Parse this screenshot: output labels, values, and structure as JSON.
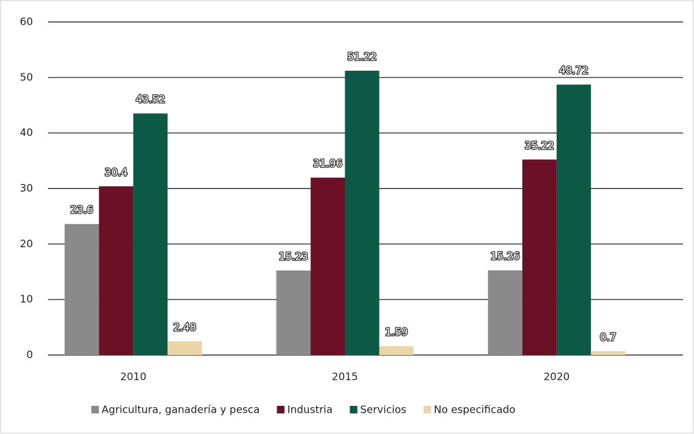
{
  "chart_data": {
    "type": "bar",
    "categories": [
      "2010",
      "2015",
      "2020"
    ],
    "series": [
      {
        "name": "Agricultura, ganadería y pesca",
        "color": "#8a8a8a",
        "values": [
          23.6,
          15.23,
          15.26
        ]
      },
      {
        "name": "Industria",
        "color": "#6b1027",
        "values": [
          30.4,
          31.96,
          35.22
        ]
      },
      {
        "name": "Servicios",
        "color": "#0c5a46",
        "values": [
          43.52,
          51.22,
          48.72
        ]
      },
      {
        "name": "No especificado",
        "color": "#ead4a8",
        "values": [
          2.48,
          1.59,
          0.7
        ]
      }
    ],
    "ylim": [
      0,
      60
    ],
    "yticks": [
      0,
      10,
      20,
      30,
      40,
      50,
      60
    ],
    "grid": true,
    "legend": "bottom"
  }
}
